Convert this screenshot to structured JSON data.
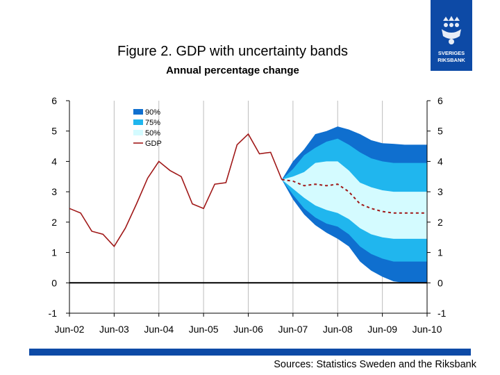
{
  "header": {
    "title": "Figure 2. GDP with uncertainty bands",
    "subtitle": "Annual percentage change"
  },
  "logo": {
    "line1": "SVERIGES",
    "line2": "RIKSBANK"
  },
  "footer": {
    "source": "Sources: Statistics Sweden and the Riksbank"
  },
  "colors": {
    "band90": "#0f6fcf",
    "band75": "#20b6ee",
    "band50": "#d4fbff",
    "gdp": "#a01818",
    "brand": "#0d4aa6"
  },
  "chart_data": {
    "type": "area",
    "title": "Figure 2. GDP with uncertainty bands",
    "subtitle": "Annual percentage change",
    "xlabel": "",
    "ylabel": "",
    "ylim": [
      -1,
      6
    ],
    "xlim": [
      2002.0,
      2010.0
    ],
    "yticks": [
      "-1",
      "0",
      "1",
      "2",
      "3",
      "4",
      "5",
      "6"
    ],
    "xticks": [
      "Jun-02",
      "Jun-03",
      "Jun-04",
      "Jun-05",
      "Jun-06",
      "Jun-07",
      "Jun-08",
      "Jun-09",
      "Jun-10"
    ],
    "legend": [
      "90%",
      "75%",
      "50%",
      "GDP"
    ],
    "legend_position": "top-left",
    "grid": true,
    "series": [
      {
        "name": "GDP",
        "style": "solid",
        "x": [
          2002.0,
          2002.25,
          2002.5,
          2002.75,
          2003.0,
          2003.25,
          2003.5,
          2003.75,
          2004.0,
          2004.25,
          2004.5,
          2004.75,
          2005.0,
          2005.25,
          2005.5,
          2005.75,
          2006.0,
          2006.25,
          2006.5,
          2006.75,
          2007.0,
          2007.25
        ],
        "values": [
          2.45,
          2.3,
          1.7,
          1.6,
          1.2,
          1.8,
          2.6,
          3.45,
          4.0,
          3.7,
          3.5,
          2.6,
          2.45,
          3.25,
          3.3,
          4.55,
          4.9,
          4.25,
          4.3,
          3.4,
          null,
          null
        ]
      },
      {
        "name": "GDP forecast",
        "style": "dashed",
        "x": [
          2006.75,
          2007.0,
          2007.25,
          2007.5,
          2007.75,
          2008.0,
          2008.25,
          2008.5,
          2008.75,
          2009.0,
          2009.25,
          2009.5,
          2009.75,
          2010.0
        ],
        "values": [
          3.4,
          3.35,
          3.2,
          3.25,
          3.2,
          3.25,
          3.0,
          2.6,
          2.45,
          2.35,
          2.3,
          2.3,
          2.3,
          2.3
        ]
      }
    ],
    "bands": {
      "x": [
        2006.75,
        2007.0,
        2007.25,
        2007.5,
        2007.75,
        2008.0,
        2008.25,
        2008.5,
        2008.75,
        2009.0,
        2009.25,
        2009.5,
        2009.75,
        2010.0
      ],
      "band90": {
        "upper": [
          3.4,
          4.0,
          4.4,
          4.9,
          5.0,
          5.15,
          5.05,
          4.9,
          4.7,
          4.6,
          4.58,
          4.55,
          4.55,
          4.55
        ],
        "lower": [
          3.4,
          2.75,
          2.25,
          1.9,
          1.65,
          1.45,
          1.2,
          0.7,
          0.4,
          0.2,
          0.05,
          0.0,
          0.0,
          0.0
        ]
      },
      "band75": {
        "upper": [
          3.4,
          3.75,
          4.2,
          4.45,
          4.65,
          4.75,
          4.55,
          4.3,
          4.1,
          4.0,
          3.95,
          3.95,
          3.95,
          3.95
        ]
      },
      "band50": {
        "upper": [
          3.4,
          3.5,
          3.65,
          3.95,
          4.0,
          4.0,
          3.7,
          3.3,
          3.15,
          3.05,
          3.0,
          3.0,
          3.0,
          3.0
        ],
        "lower": [
          3.4,
          3.1,
          2.8,
          2.55,
          2.4,
          2.3,
          2.1,
          1.8,
          1.6,
          1.5,
          1.45,
          1.45,
          1.45,
          1.45
        ]
      },
      "band75_lower": [
        3.4,
        2.9,
        2.45,
        2.15,
        1.95,
        1.85,
        1.6,
        1.2,
        0.95,
        0.8,
        0.7,
        0.7,
        0.7,
        0.7
      ]
    }
  }
}
